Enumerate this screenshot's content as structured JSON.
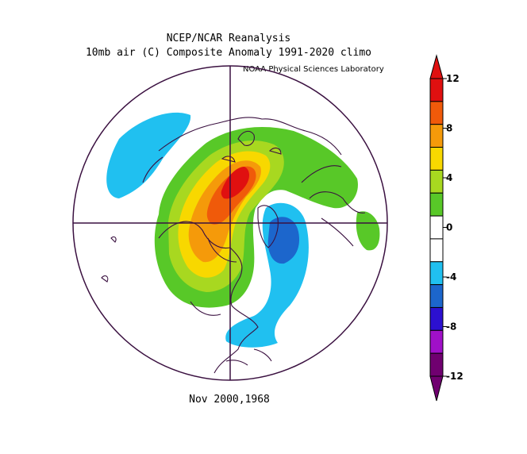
{
  "header": {
    "title": "NCEP/NCAR Reanalysis",
    "subtitle": "10mb air (C) Composite Anomaly 1991-2020 climo",
    "credit": "NOAA Physical Sciences Laboratory"
  },
  "footer": {
    "date": "Nov 2000,1968"
  },
  "colorbar": {
    "ticks": [
      "12",
      "8",
      "4",
      "0",
      "-4",
      "-8",
      "-12"
    ],
    "bands": [
      "#e01010",
      "#f05a0a",
      "#f59a0a",
      "#f8d800",
      "#a8d820",
      "#58c828",
      "#ffffff",
      "#ffffff",
      "#20c0f0",
      "#1c66cc",
      "#2c10d0",
      "#a010c8",
      "#700070"
    ]
  },
  "map": {
    "projection": "north-polar-stereographic",
    "colors": {
      "cyan": "#20c0f0",
      "blue": "#1c66cc",
      "green": "#58c828",
      "lightgreen": "#a8d820",
      "yellow": "#f8d800",
      "orange": "#f59a0a",
      "darkorange": "#f05a0a",
      "red": "#e01010",
      "coast": "#3a1040"
    }
  }
}
